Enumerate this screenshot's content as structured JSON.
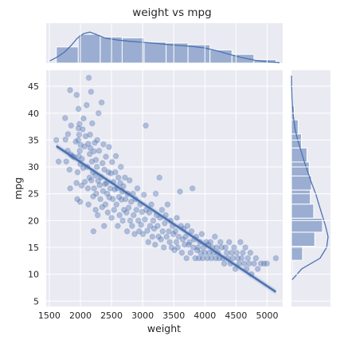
{
  "chart_data": {
    "type": "scatter",
    "title": "weight vs mpg",
    "xlabel": "weight",
    "ylabel": "mpg",
    "xlim": [
      1450,
      5250
    ],
    "ylim": [
      4,
      48
    ],
    "x_ticks": [
      1500,
      2000,
      2500,
      3000,
      3500,
      4000,
      4500,
      5000
    ],
    "y_ticks": [
      5,
      10,
      15,
      20,
      25,
      30,
      35,
      40,
      45
    ],
    "grid": true,
    "colors": {
      "background": "#eaeaf2",
      "accent": "#4c72b0"
    },
    "regression": {
      "slope": -0.0077,
      "intercept": 46.3,
      "x_range": [
        1613,
        5140
      ]
    },
    "points": [
      [
        1613,
        35.0
      ],
      [
        1649,
        31.0
      ],
      [
        1755,
        39.1
      ],
      [
        1760,
        35.1
      ],
      [
        1773,
        31.0
      ],
      [
        1795,
        33.0
      ],
      [
        1800,
        36.1
      ],
      [
        1825,
        29.5
      ],
      [
        1834,
        44.3
      ],
      [
        1835,
        26.0
      ],
      [
        1845,
        32.3
      ],
      [
        1850,
        37.7
      ],
      [
        1875,
        32.0
      ],
      [
        1900,
        31.8
      ],
      [
        1925,
        34.7
      ],
      [
        1937,
        27.0
      ],
      [
        1940,
        43.4
      ],
      [
        1950,
        24.0
      ],
      [
        1955,
        29.0
      ],
      [
        1965,
        35.0
      ],
      [
        1968,
        37.2
      ],
      [
        1970,
        40.8
      ],
      [
        1975,
        32.0
      ],
      [
        1980,
        36.0
      ],
      [
        1985,
        38.0
      ],
      [
        1990,
        33.0
      ],
      [
        1995,
        23.5
      ],
      [
        2000,
        30.5
      ],
      [
        2003,
        34.1
      ],
      [
        2020,
        26.5
      ],
      [
        2025,
        31.5
      ],
      [
        2035,
        37.0
      ],
      [
        2045,
        29.8
      ],
      [
        2050,
        39.0
      ],
      [
        2065,
        33.8
      ],
      [
        2070,
        27.2
      ],
      [
        2085,
        35.7
      ],
      [
        2100,
        41.5
      ],
      [
        2110,
        30.0
      ],
      [
        2120,
        26.0
      ],
      [
        2125,
        34.3
      ],
      [
        2130,
        23.0
      ],
      [
        2135,
        46.6
      ],
      [
        2145,
        28.0
      ],
      [
        2150,
        32.4
      ],
      [
        2155,
        36.0
      ],
      [
        2160,
        33.5
      ],
      [
        2170,
        44.0
      ],
      [
        2175,
        27.5
      ],
      [
        2185,
        31.0
      ],
      [
        2190,
        38.1
      ],
      [
        2200,
        29.0
      ],
      [
        2205,
        24.5
      ],
      [
        2210,
        18.0
      ],
      [
        2215,
        32.9
      ],
      [
        2220,
        26.0
      ],
      [
        2230,
        34.5
      ],
      [
        2240,
        28.4
      ],
      [
        2245,
        22.0
      ],
      [
        2250,
        31.3
      ],
      [
        2255,
        25.0
      ],
      [
        2265,
        30.0
      ],
      [
        2270,
        35.0
      ],
      [
        2278,
        21.0
      ],
      [
        2285,
        27.4
      ],
      [
        2290,
        40.0
      ],
      [
        2300,
        33.0
      ],
      [
        2310,
        26.6
      ],
      [
        2320,
        24.0
      ],
      [
        2330,
        28.1
      ],
      [
        2340,
        42.0
      ],
      [
        2350,
        22.5
      ],
      [
        2355,
        30.7
      ],
      [
        2365,
        25.5
      ],
      [
        2370,
        34.2
      ],
      [
        2380,
        19.0
      ],
      [
        2385,
        29.5
      ],
      [
        2395,
        26.8
      ],
      [
        2400,
        23.0
      ],
      [
        2410,
        31.9
      ],
      [
        2420,
        27.0
      ],
      [
        2430,
        25.0
      ],
      [
        2440,
        21.5
      ],
      [
        2450,
        29.0
      ],
      [
        2460,
        33.7
      ],
      [
        2465,
        24.3
      ],
      [
        2480,
        26.0
      ],
      [
        2490,
        28.8
      ],
      [
        2500,
        20.5
      ],
      [
        2510,
        30.9
      ],
      [
        2520,
        24.0
      ],
      [
        2530,
        27.2
      ],
      [
        2540,
        22.0
      ],
      [
        2550,
        25.8
      ],
      [
        2560,
        29.0
      ],
      [
        2570,
        32.0
      ],
      [
        2580,
        23.0
      ],
      [
        2590,
        26.0
      ],
      [
        2600,
        19.0
      ],
      [
        2610,
        28.0
      ],
      [
        2620,
        24.4
      ],
      [
        2630,
        21.0
      ],
      [
        2640,
        27.0
      ],
      [
        2650,
        30.0
      ],
      [
        2660,
        23.9
      ],
      [
        2670,
        25.4
      ],
      [
        2680,
        20.0
      ],
      [
        2690,
        26.4
      ],
      [
        2700,
        22.0
      ],
      [
        2715,
        28.0
      ],
      [
        2725,
        24.0
      ],
      [
        2740,
        21.5
      ],
      [
        2750,
        18.0
      ],
      [
        2760,
        25.0
      ],
      [
        2775,
        22.4
      ],
      [
        2790,
        27.5
      ],
      [
        2800,
        20.0
      ],
      [
        2815,
        23.5
      ],
      [
        2830,
        19.0
      ],
      [
        2845,
        25.0
      ],
      [
        2855,
        21.0
      ],
      [
        2870,
        17.5
      ],
      [
        2885,
        24.0
      ],
      [
        2900,
        22.0
      ],
      [
        2915,
        26.0
      ],
      [
        2930,
        20.0
      ],
      [
        2945,
        18.0
      ],
      [
        2960,
        23.0
      ],
      [
        2975,
        19.2
      ],
      [
        2990,
        21.6
      ],
      [
        3005,
        17.5
      ],
      [
        3020,
        24.8
      ],
      [
        3035,
        20.2
      ],
      [
        3050,
        37.7
      ],
      [
        3060,
        22.0
      ],
      [
        3075,
        18.1
      ],
      [
        3090,
        16.0
      ],
      [
        3105,
        21.5
      ],
      [
        3120,
        19.0
      ],
      [
        3140,
        23.0
      ],
      [
        3155,
        17.0
      ],
      [
        3170,
        20.0
      ],
      [
        3185,
        18.5
      ],
      [
        3200,
        15.5
      ],
      [
        3210,
        25.0
      ],
      [
        3225,
        21.0
      ],
      [
        3240,
        19.0
      ],
      [
        3255,
        17.0
      ],
      [
        3270,
        28.0
      ],
      [
        3280,
        20.5
      ],
      [
        3295,
        16.5
      ],
      [
        3310,
        22.0
      ],
      [
        3320,
        18.0
      ],
      [
        3340,
        15.0
      ],
      [
        3355,
        19.5
      ],
      [
        3370,
        21.0
      ],
      [
        3385,
        17.0
      ],
      [
        3400,
        23.0
      ],
      [
        3420,
        18.0
      ],
      [
        3435,
        16.0
      ],
      [
        3450,
        20.0
      ],
      [
        3465,
        15.0
      ],
      [
        3480,
        19.0
      ],
      [
        3495,
        17.5
      ],
      [
        3510,
        14.5
      ],
      [
        3525,
        18.0
      ],
      [
        3540,
        16.0
      ],
      [
        3550,
        20.5
      ],
      [
        3565,
        15.0
      ],
      [
        3580,
        17.0
      ],
      [
        3600,
        25.4
      ],
      [
        3615,
        19.0
      ],
      [
        3630,
        14.0
      ],
      [
        3645,
        16.5
      ],
      [
        3660,
        18.5
      ],
      [
        3675,
        15.5
      ],
      [
        3690,
        17.0
      ],
      [
        3705,
        13.0
      ],
      [
        3720,
        19.0
      ],
      [
        3740,
        15.5
      ],
      [
        3755,
        16.0
      ],
      [
        3770,
        14.0
      ],
      [
        3785,
        18.0
      ],
      [
        3800,
        26.0
      ],
      [
        3815,
        15.0
      ],
      [
        3830,
        16.5
      ],
      [
        3845,
        13.0
      ],
      [
        3860,
        17.0
      ],
      [
        3875,
        14.5
      ],
      [
        3890,
        15.0
      ],
      [
        3905,
        13.0
      ],
      [
        3920,
        16.0
      ],
      [
        3935,
        14.0
      ],
      [
        3950,
        17.5
      ],
      [
        3965,
        13.0
      ],
      [
        3980,
        15.0
      ],
      [
        4000,
        14.0
      ],
      [
        4020,
        16.0
      ],
      [
        4040,
        13.0
      ],
      [
        4055,
        15.5
      ],
      [
        4070,
        14.0
      ],
      [
        4090,
        16.0
      ],
      [
        4105,
        13.0
      ],
      [
        4120,
        15.0
      ],
      [
        4140,
        14.0
      ],
      [
        4160,
        17.0
      ],
      [
        4175,
        13.0
      ],
      [
        4190,
        15.0
      ],
      [
        4210,
        14.0
      ],
      [
        4230,
        13.0
      ],
      [
        4250,
        16.0
      ],
      [
        4270,
        15.0
      ],
      [
        4290,
        13.0
      ],
      [
        4310,
        12.0
      ],
      [
        4330,
        15.0
      ],
      [
        4350,
        14.0
      ],
      [
        4370,
        13.0
      ],
      [
        4390,
        16.0
      ],
      [
        4410,
        12.0
      ],
      [
        4430,
        14.0
      ],
      [
        4450,
        13.0
      ],
      [
        4470,
        15.0
      ],
      [
        4490,
        11.0
      ],
      [
        4510,
        14.0
      ],
      [
        4530,
        13.0
      ],
      [
        4550,
        12.0
      ],
      [
        4570,
        16.0
      ],
      [
        4590,
        13.0
      ],
      [
        4610,
        14.0
      ],
      [
        4630,
        12.0
      ],
      [
        4650,
        15.0
      ],
      [
        4670,
        11.0
      ],
      [
        4690,
        13.0
      ],
      [
        4710,
        12.0
      ],
      [
        4730,
        14.0
      ],
      [
        4750,
        10.0
      ],
      [
        4790,
        12.0
      ],
      [
        4820,
        13.0
      ],
      [
        4850,
        11.0
      ],
      [
        4900,
        12.0
      ],
      [
        4950,
        12.0
      ],
      [
        4997,
        12.0
      ],
      [
        5140,
        13.0
      ]
    ],
    "x_hist_counts": [
      37,
      66,
      60,
      58,
      48,
      46,
      42,
      30,
      20,
      8
    ],
    "x_kde": [
      [
        1500,
        0.06
      ],
      [
        1620,
        0.18
      ],
      [
        1750,
        0.35
      ],
      [
        1850,
        0.55
      ],
      [
        1950,
        0.78
      ],
      [
        2050,
        0.92
      ],
      [
        2150,
        0.97
      ],
      [
        2250,
        0.9
      ],
      [
        2400,
        0.78
      ],
      [
        2600,
        0.72
      ],
      [
        2800,
        0.68
      ],
      [
        3000,
        0.65
      ],
      [
        3200,
        0.62
      ],
      [
        3400,
        0.58
      ],
      [
        3600,
        0.55
      ],
      [
        3800,
        0.52
      ],
      [
        4000,
        0.47
      ],
      [
        4200,
        0.38
      ],
      [
        4400,
        0.27
      ],
      [
        4600,
        0.17
      ],
      [
        4800,
        0.09
      ],
      [
        5000,
        0.04
      ],
      [
        5200,
        0.01
      ]
    ],
    "y_hist_counts": [
      2,
      20,
      42,
      56,
      40,
      34,
      36,
      32,
      28,
      18,
      12,
      5,
      2,
      1
    ],
    "y_kde": [
      [
        9,
        0.02
      ],
      [
        11,
        0.28
      ],
      [
        13,
        0.78
      ],
      [
        15,
        0.96
      ],
      [
        17,
        1.0
      ],
      [
        19,
        0.93
      ],
      [
        21,
        0.84
      ],
      [
        23,
        0.75
      ],
      [
        25,
        0.66
      ],
      [
        27,
        0.55
      ],
      [
        29,
        0.45
      ],
      [
        31,
        0.35
      ],
      [
        33,
        0.26
      ],
      [
        35,
        0.17
      ],
      [
        37,
        0.1
      ],
      [
        39,
        0.06
      ],
      [
        41,
        0.03
      ],
      [
        43,
        0.015
      ],
      [
        45,
        0.006
      ],
      [
        47,
        0.002
      ]
    ]
  }
}
